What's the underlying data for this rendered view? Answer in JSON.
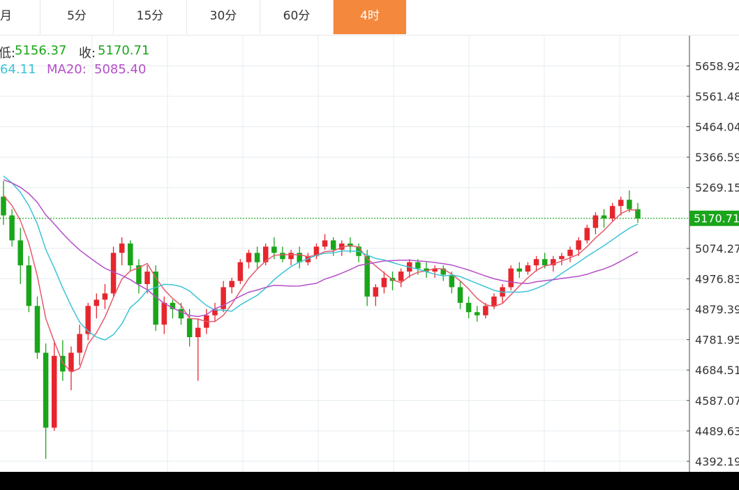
{
  "tabs": [
    {
      "label": "月",
      "active": false
    },
    {
      "label": "5分",
      "active": false
    },
    {
      "label": "15分",
      "active": false
    },
    {
      "label": "30分",
      "active": false
    },
    {
      "label": "60分",
      "active": false
    },
    {
      "label": "4时",
      "active": true
    }
  ],
  "info": {
    "low_label": "低:",
    "low_value": "5156.37",
    "close_label": "收:",
    "close_value": "5170.71",
    "ma10_value": "64.11",
    "ma20_label": "MA20:",
    "ma20_value": "5085.40"
  },
  "colors": {
    "up": "#e6262e",
    "down": "#1aa51a",
    "ma5": "#e6596b",
    "ma10": "#3cc3d6",
    "ma20": "#b44fc7",
    "accent": "#f4883c",
    "grid": "#e4ecf0",
    "last_line": "#22aa22"
  },
  "chart_data": {
    "type": "candlestick",
    "ylim": [
      4392,
      5756
    ],
    "y_ticks": [
      "5658.92",
      "5561.48",
      "5464.04",
      "5366.59",
      "5269.15",
      "5170.71",
      "5074.27",
      "4976.83",
      "4879.39",
      "4781.95",
      "4684.51",
      "4587.07",
      "4489.63",
      "4392.19"
    ],
    "last_price": "5170.71",
    "candles": [
      [
        5240,
        5290,
        5150,
        5180
      ],
      [
        5180,
        5200,
        5080,
        5100
      ],
      [
        5100,
        5140,
        4960,
        5020
      ],
      [
        5020,
        5050,
        4870,
        4890
      ],
      [
        4890,
        4920,
        4720,
        4740
      ],
      [
        4740,
        4770,
        4400,
        4500
      ],
      [
        4500,
        4780,
        4490,
        4730
      ],
      [
        4730,
        4780,
        4650,
        4680
      ],
      [
        4680,
        4760,
        4620,
        4740
      ],
      [
        4740,
        4830,
        4700,
        4800
      ],
      [
        4800,
        4900,
        4780,
        4890
      ],
      [
        4890,
        4930,
        4850,
        4910
      ],
      [
        4910,
        4960,
        4880,
        4930
      ],
      [
        4930,
        5080,
        4920,
        5060
      ],
      [
        5060,
        5110,
        5020,
        5090
      ],
      [
        5090,
        5100,
        5000,
        5020
      ],
      [
        5020,
        5040,
        4930,
        4960
      ],
      [
        4960,
        5020,
        4930,
        5000
      ],
      [
        5000,
        5020,
        4810,
        4830
      ],
      [
        4830,
        4920,
        4800,
        4900
      ],
      [
        4900,
        4910,
        4850,
        4880
      ],
      [
        4880,
        4900,
        4830,
        4850
      ],
      [
        4850,
        4880,
        4760,
        4790
      ],
      [
        4790,
        4850,
        4650,
        4820
      ],
      [
        4820,
        4880,
        4800,
        4860
      ],
      [
        4860,
        4900,
        4840,
        4880
      ],
      [
        4880,
        4970,
        4870,
        4950
      ],
      [
        4950,
        4980,
        4930,
        4970
      ],
      [
        4970,
        5040,
        4960,
        5030
      ],
      [
        5030,
        5070,
        5010,
        5060
      ],
      [
        5060,
        5080,
        5010,
        5030
      ],
      [
        5030,
        5090,
        5020,
        5080
      ],
      [
        5080,
        5110,
        5040,
        5060
      ],
      [
        5060,
        5080,
        5030,
        5040
      ],
      [
        5040,
        5070,
        5020,
        5060
      ],
      [
        5060,
        5080,
        5010,
        5030
      ],
      [
        5030,
        5060,
        5020,
        5050
      ],
      [
        5050,
        5090,
        5040,
        5080
      ],
      [
        5080,
        5120,
        5070,
        5100
      ],
      [
        5100,
        5110,
        5050,
        5070
      ],
      [
        5070,
        5100,
        5050,
        5090
      ],
      [
        5090,
        5110,
        5060,
        5080
      ],
      [
        5080,
        5090,
        5030,
        5050
      ],
      [
        5050,
        5070,
        4890,
        4920
      ],
      [
        4920,
        4960,
        4890,
        4950
      ],
      [
        4950,
        5000,
        4930,
        4980
      ],
      [
        4980,
        5000,
        4940,
        4970
      ],
      [
        4970,
        5010,
        4950,
        5000
      ],
      [
        5000,
        5040,
        4980,
        5030
      ],
      [
        5030,
        5040,
        4990,
        5010
      ],
      [
        5010,
        5030,
        4980,
        5000
      ],
      [
        5000,
        5020,
        4980,
        5010
      ],
      [
        5010,
        5020,
        4970,
        4990
      ],
      [
        4990,
        5000,
        4930,
        4950
      ],
      [
        4950,
        4970,
        4880,
        4900
      ],
      [
        4900,
        4920,
        4850,
        4870
      ],
      [
        4870,
        4890,
        4840,
        4860
      ],
      [
        4860,
        4900,
        4850,
        4890
      ],
      [
        4890,
        4930,
        4880,
        4920
      ],
      [
        4920,
        4960,
        4900,
        4950
      ],
      [
        4950,
        5020,
        4940,
        5010
      ],
      [
        5010,
        5030,
        4980,
        5000
      ],
      [
        5000,
        5030,
        4990,
        5020
      ],
      [
        5020,
        5050,
        5000,
        5040
      ],
      [
        5040,
        5060,
        5010,
        5020
      ],
      [
        5020,
        5050,
        5000,
        5040
      ],
      [
        5040,
        5060,
        5020,
        5050
      ],
      [
        5050,
        5080,
        5030,
        5070
      ],
      [
        5070,
        5110,
        5050,
        5100
      ],
      [
        5100,
        5150,
        5090,
        5140
      ],
      [
        5140,
        5190,
        5120,
        5180
      ],
      [
        5180,
        5200,
        5140,
        5170
      ],
      [
        5170,
        5220,
        5160,
        5210
      ],
      [
        5210,
        5240,
        5180,
        5230
      ],
      [
        5230,
        5260,
        5190,
        5200
      ],
      [
        5200,
        5220,
        5156,
        5170
      ]
    ]
  }
}
